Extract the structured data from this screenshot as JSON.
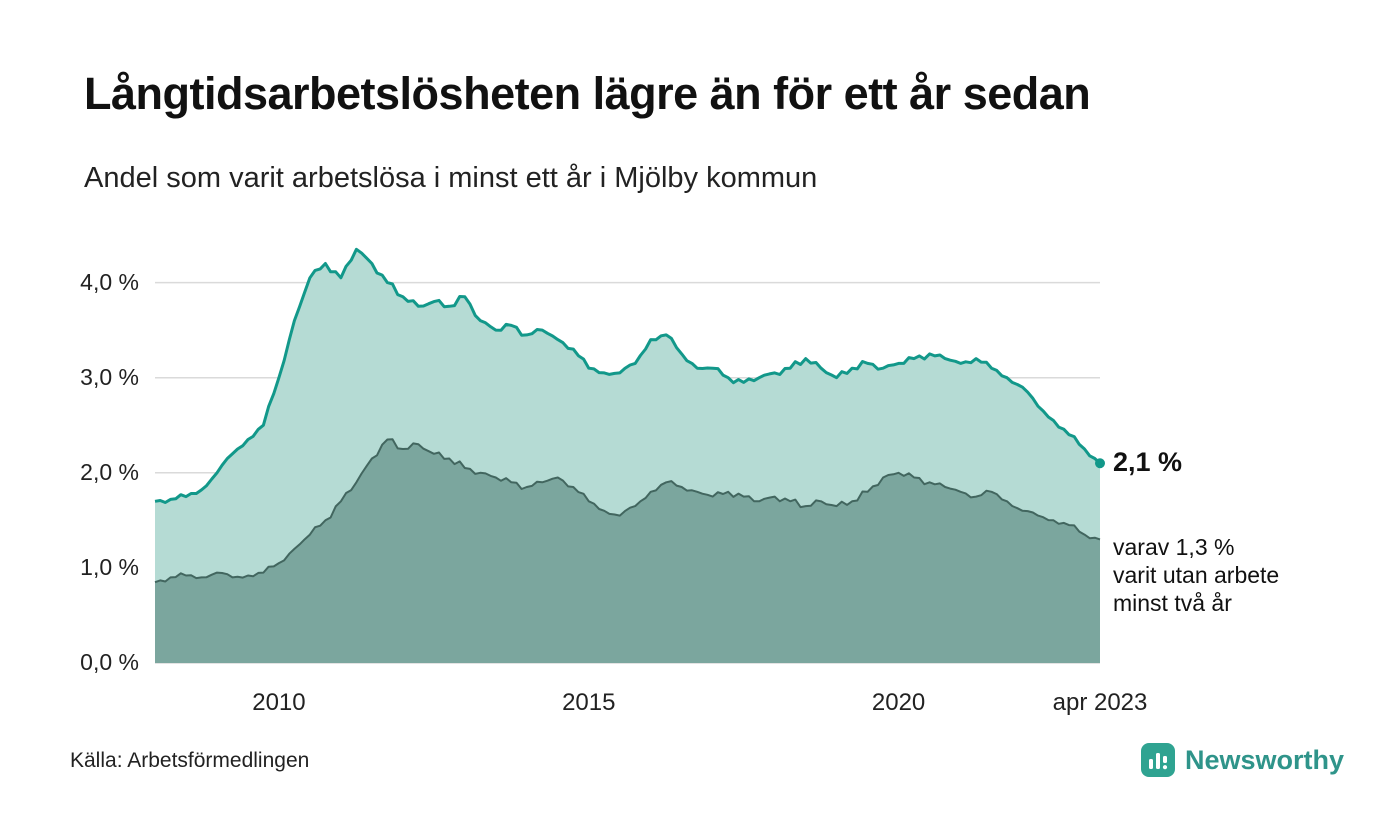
{
  "chart_data": {
    "type": "area",
    "title": "Långtidsarbetslösheten lägre än för ett år sedan",
    "subtitle": "Andel som varit arbetslösa i minst ett år i Mjölby kommun",
    "unit": "%",
    "grid": true,
    "legend": "none",
    "ylim": [
      0,
      4.5
    ],
    "x": [
      2008,
      2008.25,
      2008.5,
      2008.75,
      2009,
      2009.25,
      2009.5,
      2009.75,
      2010,
      2010.25,
      2010.5,
      2010.75,
      2011,
      2011.25,
      2011.5,
      2011.75,
      2012,
      2012.25,
      2012.5,
      2012.75,
      2013,
      2013.25,
      2013.5,
      2013.75,
      2014,
      2014.25,
      2014.5,
      2014.75,
      2015,
      2015.25,
      2015.5,
      2015.75,
      2016,
      2016.25,
      2016.5,
      2016.75,
      2017,
      2017.25,
      2017.5,
      2017.75,
      2018,
      2018.25,
      2018.5,
      2018.75,
      2019,
      2019.25,
      2019.5,
      2019.75,
      2020,
      2020.25,
      2020.5,
      2020.75,
      2021,
      2021.25,
      2021.5,
      2021.75,
      2022,
      2022.25,
      2022.5,
      2022.75,
      2023,
      2023.25
    ],
    "series": [
      {
        "name": "Andel arbetslösa minst ett år",
        "color": "#12988a",
        "fill": "#b5dbd4",
        "values": [
          1.7,
          1.72,
          1.75,
          1.82,
          2.0,
          2.2,
          2.35,
          2.5,
          3.0,
          3.6,
          4.05,
          4.2,
          4.05,
          4.35,
          4.2,
          4.0,
          3.85,
          3.75,
          3.8,
          3.75,
          3.85,
          3.6,
          3.5,
          3.55,
          3.45,
          3.5,
          3.4,
          3.3,
          3.1,
          3.05,
          3.05,
          3.15,
          3.4,
          3.45,
          3.25,
          3.1,
          3.1,
          3.0,
          2.95,
          3.0,
          3.05,
          3.1,
          3.2,
          3.1,
          3.0,
          3.1,
          3.15,
          3.1,
          3.15,
          3.2,
          3.25,
          3.2,
          3.15,
          3.2,
          3.1,
          3.0,
          2.9,
          2.7,
          2.55,
          2.4,
          2.25,
          2.1
        ]
      },
      {
        "name": "Varav utan arbete minst två år",
        "color": "#42665f",
        "fill": "#7ba69e",
        "values": [
          0.85,
          0.9,
          0.92,
          0.9,
          0.95,
          0.9,
          0.92,
          0.95,
          1.05,
          1.2,
          1.35,
          1.5,
          1.7,
          1.9,
          2.15,
          2.35,
          2.25,
          2.3,
          2.2,
          2.15,
          2.05,
          2.0,
          1.95,
          1.9,
          1.85,
          1.9,
          1.95,
          1.85,
          1.7,
          1.6,
          1.55,
          1.65,
          1.8,
          1.9,
          1.85,
          1.8,
          1.75,
          1.8,
          1.75,
          1.7,
          1.75,
          1.7,
          1.65,
          1.7,
          1.65,
          1.7,
          1.8,
          1.95,
          2.0,
          1.95,
          1.9,
          1.85,
          1.8,
          1.75,
          1.8,
          1.7,
          1.6,
          1.55,
          1.5,
          1.45,
          1.35,
          1.3
        ]
      }
    ],
    "yticks": [
      {
        "v": 0,
        "label": "0,0 %"
      },
      {
        "v": 1,
        "label": "1,0 %"
      },
      {
        "v": 2,
        "label": "2,0 %"
      },
      {
        "v": 3,
        "label": "3,0 %"
      },
      {
        "v": 4,
        "label": "4,0 %"
      }
    ],
    "xticks": [
      {
        "v": 2010,
        "label": "2010"
      },
      {
        "v": 2015,
        "label": "2015"
      },
      {
        "v": 2020,
        "label": "2020"
      },
      {
        "v": 2023.25,
        "label": "apr 2023"
      }
    ]
  },
  "annotations": {
    "latest_value": "2,1 %",
    "note_lines": [
      "varav 1,3 %",
      "varit utan arbete",
      "minst två år"
    ]
  },
  "source": "Källa: Arbetsförmedlingen",
  "brand": "Newsworthy",
  "colors": {
    "grid": "#dadada",
    "text": "#1a1a1a",
    "brand_teal": "#2f948a",
    "logo_bg": "#2fa391"
  }
}
